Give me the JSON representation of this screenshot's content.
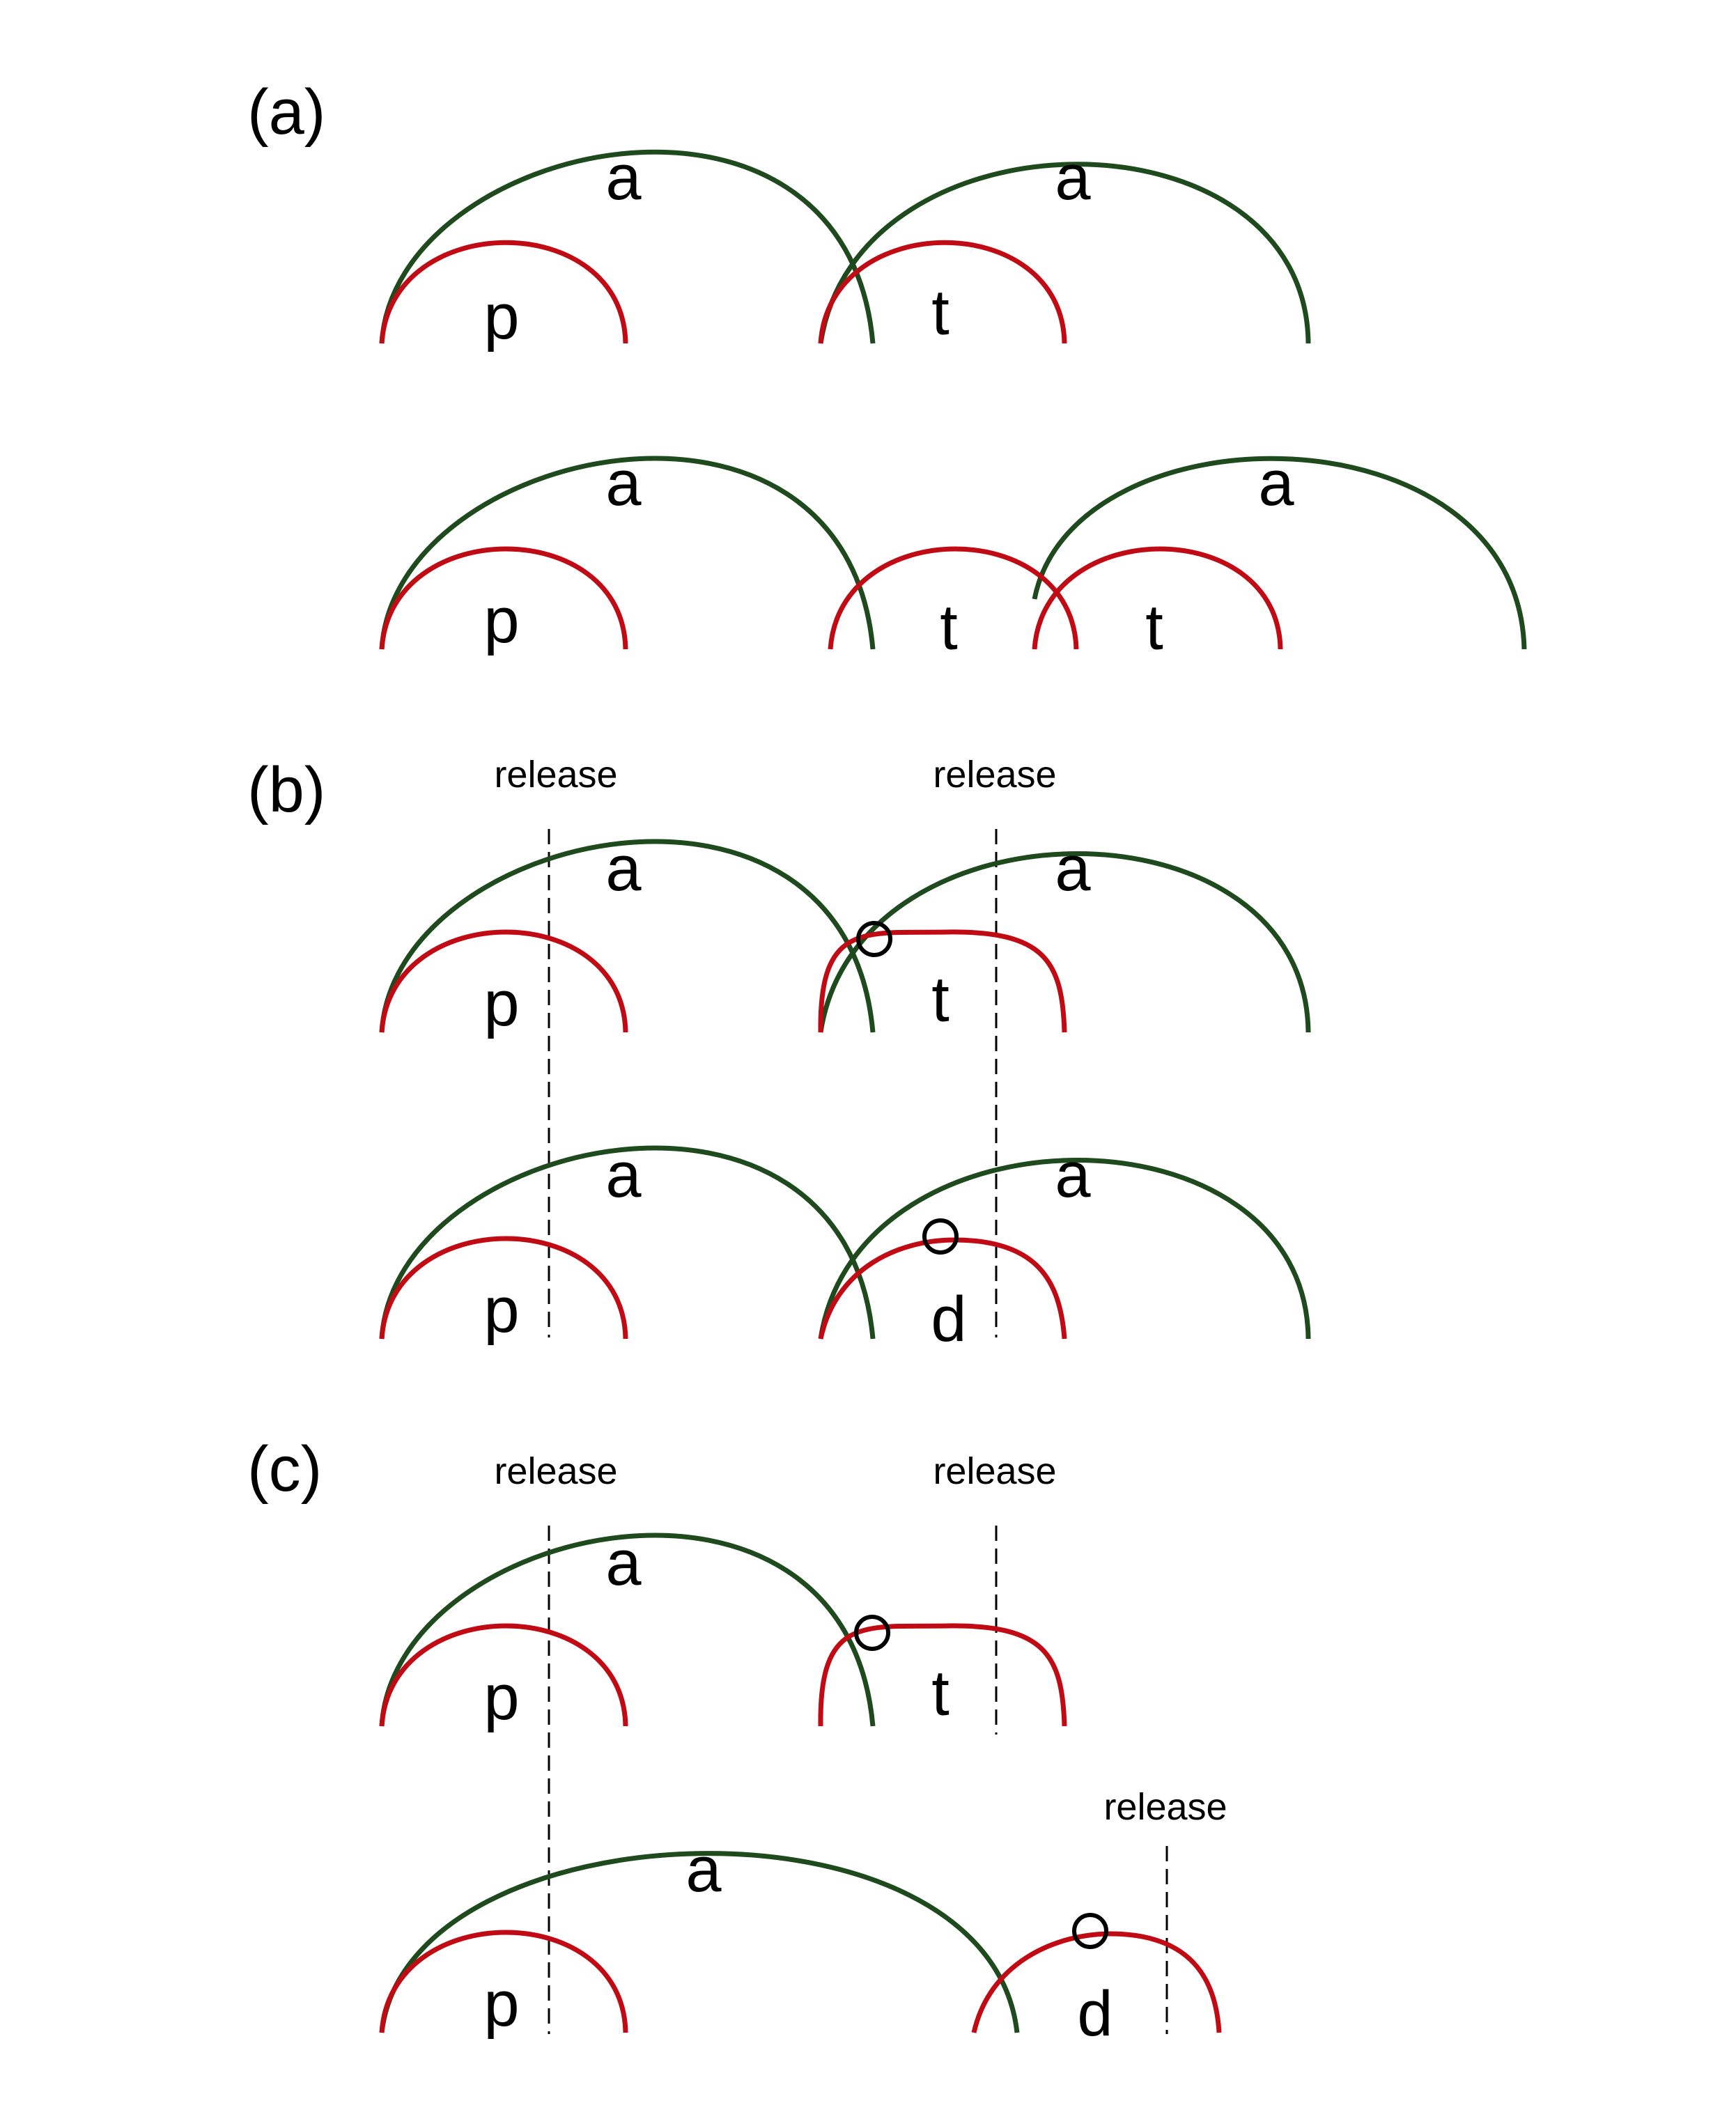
{
  "panels": {
    "a": "(a)",
    "b": "(b)",
    "c": "(c)"
  },
  "gesture_labels": {
    "a_row1": [
      "a",
      "p",
      "a",
      "t"
    ],
    "a_row2": [
      "a",
      "p",
      "t",
      "a",
      "t"
    ],
    "b_row1": [
      "a",
      "p",
      "a",
      "t"
    ],
    "b_row2": [
      "a",
      "p",
      "a",
      "d"
    ],
    "c_row1": [
      "a",
      "p",
      "t"
    ],
    "c_row2": [
      "a",
      "p",
      "d"
    ]
  },
  "release_label": "release",
  "colors": {
    "vowel_gesture": "#1e4a1e",
    "consonant_gesture": "#c00a14"
  }
}
